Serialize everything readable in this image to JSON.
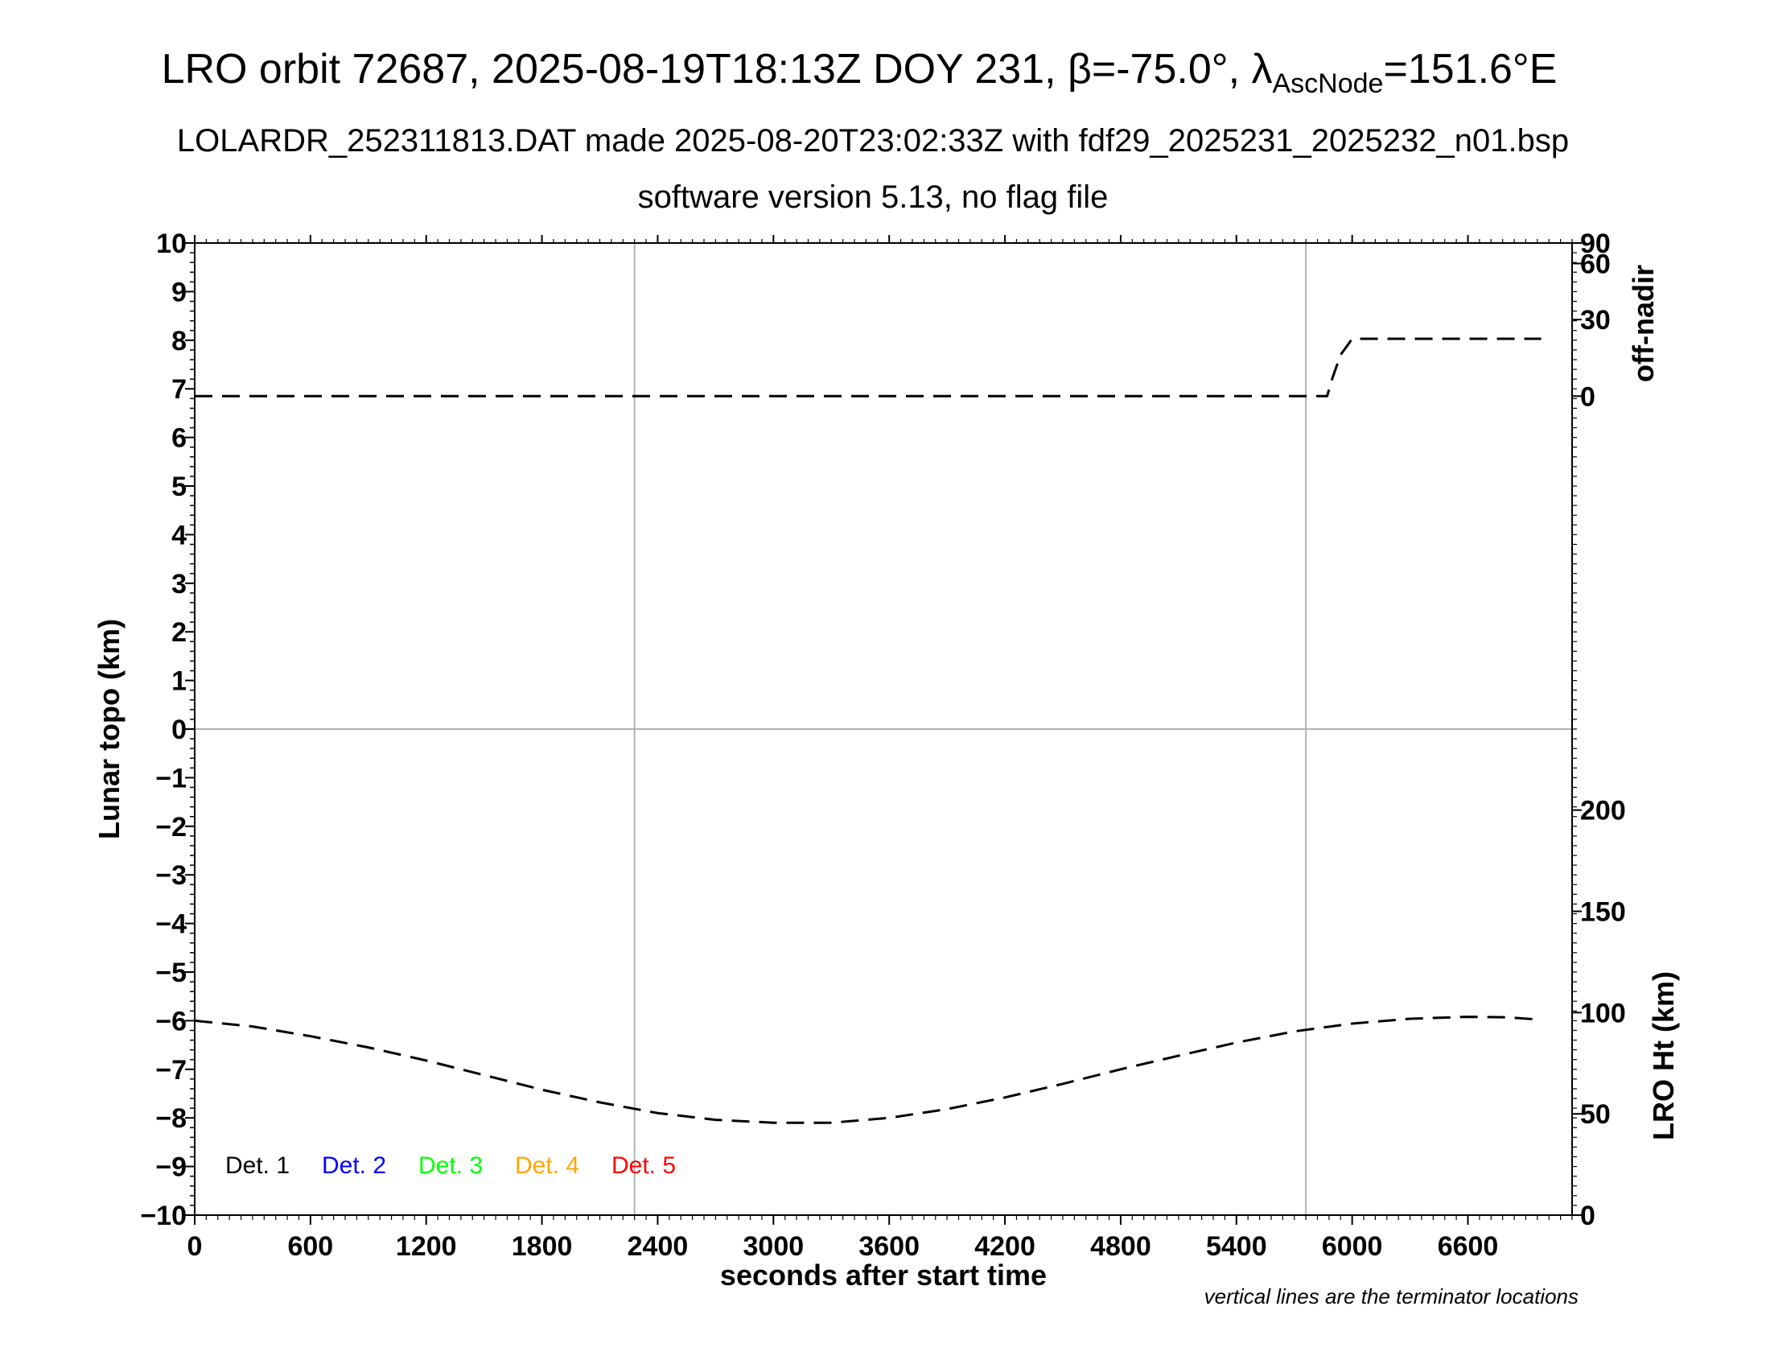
{
  "chart_data": {
    "type": "line",
    "title": {
      "main": "LRO orbit 72687, 2025-08-19T18:13Z DOY 231, β=-75.0°, λ",
      "subscript": "AscNode",
      "suffix": "=151.6°E"
    },
    "subtitle": "LOLARDR_252311813.DAT made 2025-08-20T23:02:33Z with fdf29_2025231_2025232_n01.bsp",
    "subtitle2": "software version 5.13, no flag file",
    "xlabel": "seconds after start time",
    "ylabel": "Lunar topo (km)",
    "y2label_top": "off-nadir",
    "y2label_bottom": "LRO Ht (km)",
    "note": "vertical lines are the terminator locations",
    "xlim": [
      0,
      7140
    ],
    "ylim": [
      -10,
      10
    ],
    "x_ticks": [
      0,
      600,
      1200,
      1800,
      2400,
      3000,
      3600,
      4200,
      4800,
      5400,
      6000,
      6600
    ],
    "y_ticks": [
      10,
      9,
      8,
      7,
      6,
      5,
      4,
      3,
      2,
      1,
      0,
      -1,
      -2,
      -3,
      -4,
      -5,
      -6,
      -7,
      -8,
      -9,
      -10
    ],
    "y_tick_labels": [
      "10",
      "9",
      "8",
      "7",
      "6",
      "5",
      "4",
      "3",
      "2",
      "1",
      "0",
      "−1",
      "−2",
      "−3",
      "−4",
      "−5",
      "−6",
      "−7",
      "−8",
      "−9",
      "−10"
    ],
    "off_nadir_axis": {
      "range": [
        0,
        90
      ],
      "ticks": [
        0,
        30,
        60,
        90
      ]
    },
    "lro_ht_axis": {
      "range": [
        0,
        240
      ],
      "ticks": [
        0,
        50,
        100,
        150,
        200
      ]
    },
    "grid": {
      "horizontal": [
        0
      ],
      "terminators_x": [
        2280,
        5760
      ]
    },
    "legend": {
      "placement": "bottom-left",
      "entries": [
        {
          "label": "Det. 1",
          "color": "#000000"
        },
        {
          "label": "Det. 2",
          "color": "#0000ff"
        },
        {
          "label": "Det. 3",
          "color": "#00ff00"
        },
        {
          "label": "Det. 4",
          "color": "#ffa500"
        },
        {
          "label": "Det. 5",
          "color": "#ff0000"
        }
      ]
    },
    "series": [
      {
        "axis": "off-nadir",
        "style": "dashed",
        "points": [
          [
            0,
            6.85
          ],
          [
            2280,
            6.85
          ],
          [
            5760,
            6.85
          ],
          [
            5870,
            6.85
          ],
          [
            5900,
            7.25
          ],
          [
            5940,
            7.7
          ],
          [
            6000,
            8.03
          ],
          [
            6600,
            8.03
          ],
          [
            6980,
            8.03
          ]
        ]
      },
      {
        "axis": "lro-ht",
        "style": "dashed",
        "points": [
          [
            0,
            -6.0
          ],
          [
            300,
            -6.12
          ],
          [
            600,
            -6.32
          ],
          [
            900,
            -6.55
          ],
          [
            1200,
            -6.82
          ],
          [
            1500,
            -7.12
          ],
          [
            1800,
            -7.42
          ],
          [
            2100,
            -7.68
          ],
          [
            2400,
            -7.9
          ],
          [
            2700,
            -8.04
          ],
          [
            3000,
            -8.1
          ],
          [
            3300,
            -8.1
          ],
          [
            3600,
            -8.0
          ],
          [
            3900,
            -7.82
          ],
          [
            4200,
            -7.58
          ],
          [
            4500,
            -7.3
          ],
          [
            4800,
            -7.0
          ],
          [
            5100,
            -6.72
          ],
          [
            5400,
            -6.45
          ],
          [
            5700,
            -6.22
          ],
          [
            6000,
            -6.06
          ],
          [
            6300,
            -5.96
          ],
          [
            6600,
            -5.92
          ],
          [
            6800,
            -5.93
          ],
          [
            6980,
            -5.98
          ]
        ]
      }
    ]
  }
}
